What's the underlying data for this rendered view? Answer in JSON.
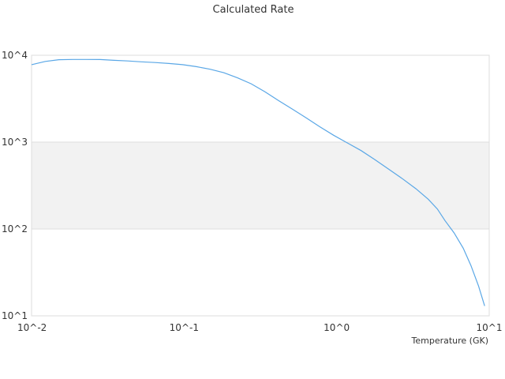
{
  "chart_data": {
    "type": "line",
    "title": "Calculated Rate",
    "xlabel": "Temperature (GK)",
    "ylabel": "",
    "x_scale": "log",
    "y_scale": "log",
    "xlim": [
      0.01,
      10
    ],
    "ylim": [
      10,
      10000
    ],
    "x_ticks": [
      {
        "value": 0.01,
        "label": "10^-2"
      },
      {
        "value": 0.1,
        "label": "10^-1"
      },
      {
        "value": 1,
        "label": "10^0"
      },
      {
        "value": 10,
        "label": "10^1"
      }
    ],
    "y_ticks": [
      {
        "value": 10,
        "label": "10^1"
      },
      {
        "value": 100,
        "label": "10^2"
      },
      {
        "value": 1000,
        "label": "10^3"
      },
      {
        "value": 10000,
        "label": "10^4"
      }
    ],
    "shaded_band": [
      100,
      1000
    ],
    "grid": true,
    "legend": "none",
    "colors": {
      "line": "#5aa7e6",
      "band": "#f2f2f2",
      "grid": "#dddddd",
      "frame": "#dddddd"
    },
    "series": [
      {
        "x": [
          0.01,
          0.0123,
          0.0151,
          0.0186,
          0.0229,
          0.0282,
          0.0347,
          0.0427,
          0.0525,
          0.0646,
          0.0794,
          0.0977,
          0.1202,
          0.148,
          0.182,
          0.224,
          0.275,
          0.339,
          0.417,
          0.513,
          0.631,
          0.776,
          0.955,
          1.175,
          1.445,
          1.778,
          2.188,
          2.692,
          3.311,
          3.981,
          4.571,
          5.129,
          5.888,
          6.761,
          7.586,
          8.511,
          9.33
        ],
        "values": [
          7800,
          8500,
          8900,
          8950,
          8950,
          8930,
          8750,
          8600,
          8400,
          8250,
          8050,
          7800,
          7400,
          6900,
          6300,
          5500,
          4700,
          3800,
          3000,
          2400,
          1900,
          1500,
          1200,
          980,
          800,
          630,
          490,
          380,
          290,
          220,
          170,
          125,
          90,
          60,
          38,
          22,
          13
        ]
      }
    ]
  }
}
